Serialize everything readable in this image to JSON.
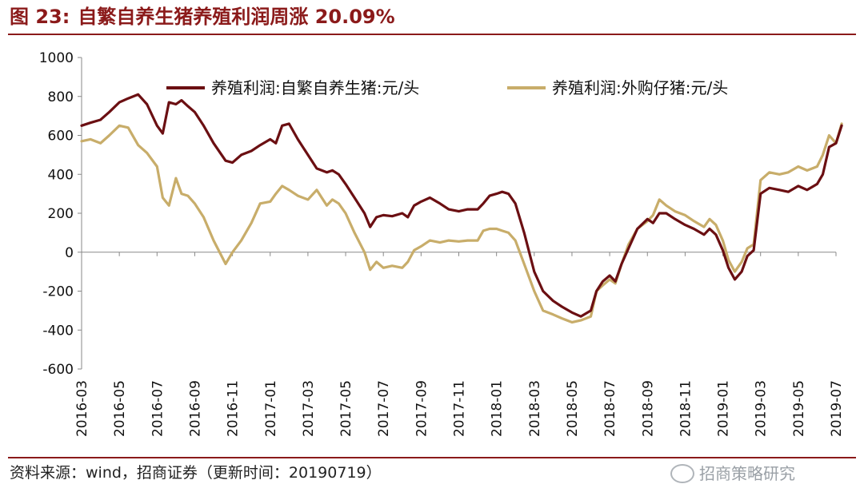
{
  "header": {
    "figure_label": "图 23:",
    "title": "自繁自养生猪养殖利润周涨 20.09%"
  },
  "footer": {
    "source": "资料来源：wind，招商证券（更新时间：20190719）",
    "watermark": "招商策略研究",
    "watermark_icon": "wechat-icon"
  },
  "colors": {
    "accent": "#8b1a1a",
    "series1": "#6b0f12",
    "series2": "#c8ad6a"
  },
  "chart_data": {
    "type": "line",
    "title": "",
    "xlabel": "",
    "ylabel": "",
    "ylim": [
      -600,
      1000
    ],
    "yticks": [
      -600,
      -400,
      -200,
      0,
      200,
      400,
      600,
      800,
      1000
    ],
    "x_tick_labels": [
      "2016-03",
      "2016-05",
      "2016-07",
      "2016-09",
      "2016-11",
      "2017-01",
      "2017-03",
      "2017-05",
      "2017-07",
      "2017-09",
      "2017-11",
      "2018-01",
      "2018-03",
      "2018-05",
      "2018-07",
      "2018-09",
      "2018-11",
      "2019-01",
      "2019-03",
      "2019-05",
      "2019-07"
    ],
    "x_range_months": [
      "2016-03",
      "2019-07"
    ],
    "grid": false,
    "legend_position": "top",
    "series": [
      {
        "name": "养殖利润:自繁自养生猪:元/头",
        "points": [
          [
            "2016-03",
            650
          ],
          [
            "2016-03-15",
            665
          ],
          [
            "2016-04",
            680
          ],
          [
            "2016-04-15",
            720
          ],
          [
            "2016-05",
            770
          ],
          [
            "2016-05-15",
            790
          ],
          [
            "2016-06",
            810
          ],
          [
            "2016-06-15",
            760
          ],
          [
            "2016-07",
            650
          ],
          [
            "2016-07-10",
            610
          ],
          [
            "2016-07-20",
            770
          ],
          [
            "2016-08",
            760
          ],
          [
            "2016-08-10",
            780
          ],
          [
            "2016-08-20",
            750
          ],
          [
            "2016-09",
            720
          ],
          [
            "2016-09-15",
            650
          ],
          [
            "2016-10",
            560
          ],
          [
            "2016-10-20",
            470
          ],
          [
            "2016-11",
            460
          ],
          [
            "2016-11-15",
            500
          ],
          [
            "2016-12",
            520
          ],
          [
            "2016-12-15",
            550
          ],
          [
            "2017-01",
            580
          ],
          [
            "2017-01-10",
            560
          ],
          [
            "2017-01-20",
            650
          ],
          [
            "2017-02",
            660
          ],
          [
            "2017-02-15",
            580
          ],
          [
            "2017-03",
            500
          ],
          [
            "2017-03-15",
            430
          ],
          [
            "2017-04",
            410
          ],
          [
            "2017-04-10",
            420
          ],
          [
            "2017-04-20",
            400
          ],
          [
            "2017-05",
            350
          ],
          [
            "2017-05-15",
            280
          ],
          [
            "2017-06",
            200
          ],
          [
            "2017-06-10",
            130
          ],
          [
            "2017-06-20",
            180
          ],
          [
            "2017-07",
            190
          ],
          [
            "2017-07-15",
            185
          ],
          [
            "2017-08",
            200
          ],
          [
            "2017-08-10",
            180
          ],
          [
            "2017-08-20",
            240
          ],
          [
            "2017-09",
            260
          ],
          [
            "2017-09-15",
            280
          ],
          [
            "2017-10",
            250
          ],
          [
            "2017-10-15",
            220
          ],
          [
            "2017-11",
            210
          ],
          [
            "2017-11-15",
            220
          ],
          [
            "2017-12",
            220
          ],
          [
            "2017-12-10",
            250
          ],
          [
            "2017-12-20",
            290
          ],
          [
            "2018-01",
            300
          ],
          [
            "2018-01-10",
            310
          ],
          [
            "2018-01-20",
            300
          ],
          [
            "2018-02",
            250
          ],
          [
            "2018-02-15",
            100
          ],
          [
            "2018-03",
            -100
          ],
          [
            "2018-03-15",
            -200
          ],
          [
            "2018-04",
            -250
          ],
          [
            "2018-04-15",
            -280
          ],
          [
            "2018-05",
            -310
          ],
          [
            "2018-05-15",
            -330
          ],
          [
            "2018-06",
            -300
          ],
          [
            "2018-06-10",
            -200
          ],
          [
            "2018-06-20",
            -150
          ],
          [
            "2018-07",
            -120
          ],
          [
            "2018-07-10",
            -150
          ],
          [
            "2018-07-20",
            -60
          ],
          [
            "2018-08",
            20
          ],
          [
            "2018-08-15",
            120
          ],
          [
            "2018-09",
            170
          ],
          [
            "2018-09-10",
            150
          ],
          [
            "2018-09-20",
            200
          ],
          [
            "2018-10",
            200
          ],
          [
            "2018-10-15",
            170
          ],
          [
            "2018-11",
            140
          ],
          [
            "2018-11-15",
            120
          ],
          [
            "2018-12",
            90
          ],
          [
            "2018-12-10",
            120
          ],
          [
            "2018-12-20",
            90
          ],
          [
            "2019-01",
            10
          ],
          [
            "2019-01-10",
            -80
          ],
          [
            "2019-01-20",
            -140
          ],
          [
            "2019-02",
            -100
          ],
          [
            "2019-02-10",
            -20
          ],
          [
            "2019-02-20",
            10
          ],
          [
            "2019-03",
            300
          ],
          [
            "2019-03-15",
            330
          ],
          [
            "2019-04",
            320
          ],
          [
            "2019-04-15",
            310
          ],
          [
            "2019-05",
            340
          ],
          [
            "2019-05-15",
            320
          ],
          [
            "2019-06",
            350
          ],
          [
            "2019-06-10",
            400
          ],
          [
            "2019-06-20",
            540
          ],
          [
            "2019-07",
            560
          ],
          [
            "2019-07-10",
            650
          ]
        ]
      },
      {
        "name": "养殖利润:外购仔猪:元/头",
        "points": [
          [
            "2016-03",
            570
          ],
          [
            "2016-03-15",
            580
          ],
          [
            "2016-04",
            560
          ],
          [
            "2016-04-15",
            600
          ],
          [
            "2016-05",
            650
          ],
          [
            "2016-05-15",
            640
          ],
          [
            "2016-06",
            550
          ],
          [
            "2016-06-15",
            510
          ],
          [
            "2016-07",
            440
          ],
          [
            "2016-07-10",
            280
          ],
          [
            "2016-07-20",
            240
          ],
          [
            "2016-08",
            380
          ],
          [
            "2016-08-10",
            300
          ],
          [
            "2016-08-20",
            290
          ],
          [
            "2016-09",
            250
          ],
          [
            "2016-09-15",
            180
          ],
          [
            "2016-10",
            60
          ],
          [
            "2016-10-20",
            -60
          ],
          [
            "2016-11",
            0
          ],
          [
            "2016-11-15",
            60
          ],
          [
            "2016-12",
            150
          ],
          [
            "2016-12-15",
            250
          ],
          [
            "2017-01",
            260
          ],
          [
            "2017-01-10",
            300
          ],
          [
            "2017-01-20",
            340
          ],
          [
            "2017-02",
            320
          ],
          [
            "2017-02-15",
            290
          ],
          [
            "2017-03",
            270
          ],
          [
            "2017-03-15",
            320
          ],
          [
            "2017-04",
            240
          ],
          [
            "2017-04-10",
            270
          ],
          [
            "2017-04-20",
            250
          ],
          [
            "2017-05",
            200
          ],
          [
            "2017-05-15",
            100
          ],
          [
            "2017-06",
            0
          ],
          [
            "2017-06-10",
            -90
          ],
          [
            "2017-06-20",
            -50
          ],
          [
            "2017-07",
            -80
          ],
          [
            "2017-07-15",
            -70
          ],
          [
            "2017-08",
            -80
          ],
          [
            "2017-08-10",
            -50
          ],
          [
            "2017-08-20",
            10
          ],
          [
            "2017-09",
            30
          ],
          [
            "2017-09-15",
            60
          ],
          [
            "2017-10",
            50
          ],
          [
            "2017-10-15",
            60
          ],
          [
            "2017-11",
            55
          ],
          [
            "2017-11-15",
            60
          ],
          [
            "2017-12",
            60
          ],
          [
            "2017-12-10",
            110
          ],
          [
            "2017-12-20",
            120
          ],
          [
            "2018-01",
            120
          ],
          [
            "2018-01-10",
            110
          ],
          [
            "2018-01-20",
            100
          ],
          [
            "2018-02",
            60
          ],
          [
            "2018-02-15",
            -60
          ],
          [
            "2018-03",
            -200
          ],
          [
            "2018-03-15",
            -300
          ],
          [
            "2018-04",
            -320
          ],
          [
            "2018-04-15",
            -340
          ],
          [
            "2018-05",
            -360
          ],
          [
            "2018-05-15",
            -350
          ],
          [
            "2018-06",
            -330
          ],
          [
            "2018-06-10",
            -200
          ],
          [
            "2018-06-20",
            -170
          ],
          [
            "2018-07",
            -140
          ],
          [
            "2018-07-10",
            -160
          ],
          [
            "2018-07-20",
            -60
          ],
          [
            "2018-08",
            40
          ],
          [
            "2018-08-15",
            120
          ],
          [
            "2018-09",
            160
          ],
          [
            "2018-09-10",
            190
          ],
          [
            "2018-09-20",
            270
          ],
          [
            "2018-10",
            240
          ],
          [
            "2018-10-15",
            210
          ],
          [
            "2018-11",
            190
          ],
          [
            "2018-11-15",
            160
          ],
          [
            "2018-12",
            130
          ],
          [
            "2018-12-10",
            170
          ],
          [
            "2018-12-20",
            140
          ],
          [
            "2019-01",
            60
          ],
          [
            "2019-01-10",
            -40
          ],
          [
            "2019-01-20",
            -100
          ],
          [
            "2019-02",
            -50
          ],
          [
            "2019-02-10",
            20
          ],
          [
            "2019-02-20",
            40
          ],
          [
            "2019-03",
            370
          ],
          [
            "2019-03-15",
            410
          ],
          [
            "2019-04",
            400
          ],
          [
            "2019-04-15",
            410
          ],
          [
            "2019-05",
            440
          ],
          [
            "2019-05-15",
            420
          ],
          [
            "2019-06",
            440
          ],
          [
            "2019-06-10",
            500
          ],
          [
            "2019-06-20",
            600
          ],
          [
            "2019-07",
            560
          ],
          [
            "2019-07-10",
            660
          ]
        ]
      }
    ]
  }
}
